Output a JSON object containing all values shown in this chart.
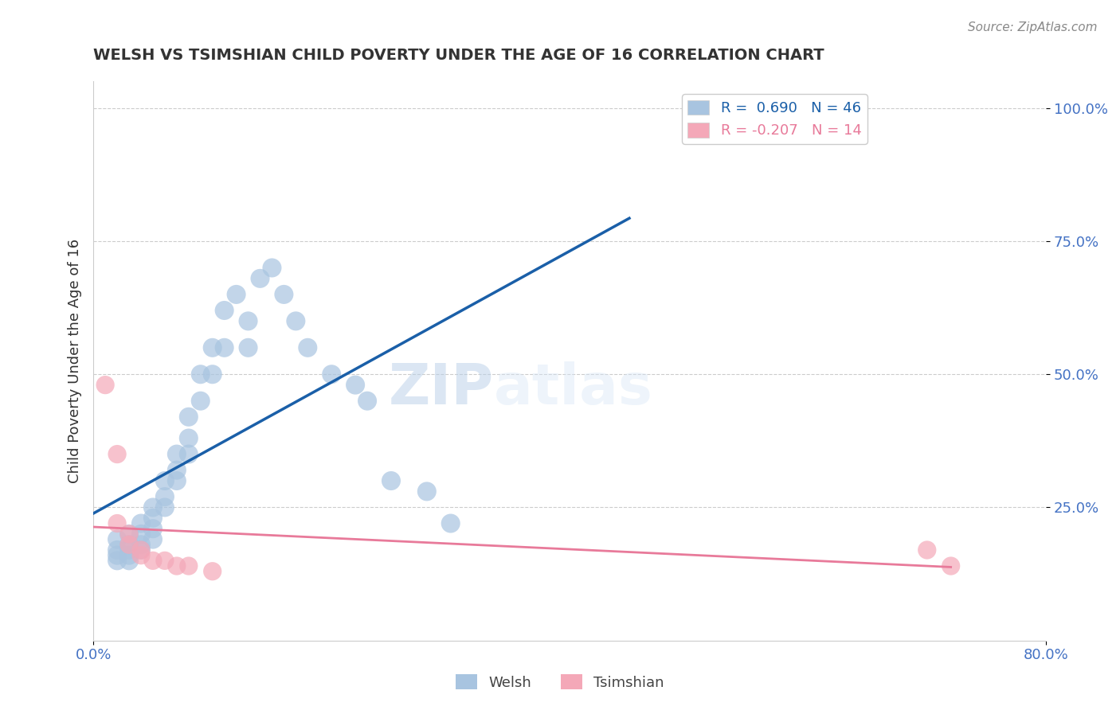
{
  "title": "WELSH VS TSIMSHIAN CHILD POVERTY UNDER THE AGE OF 16 CORRELATION CHART",
  "source": "Source: ZipAtlas.com",
  "ylabel": "Child Poverty Under the Age of 16",
  "welsh_R": 0.69,
  "welsh_N": 46,
  "tsimshian_R": -0.207,
  "tsimshian_N": 14,
  "welsh_color": "#a8c4e0",
  "tsimshian_color": "#f4a8b8",
  "welsh_line_color": "#1a5fa8",
  "tsimshian_line_color": "#e87a9a",
  "welsh_points": [
    [
      0.02,
      0.19
    ],
    [
      0.02,
      0.17
    ],
    [
      0.02,
      0.16
    ],
    [
      0.02,
      0.15
    ],
    [
      0.03,
      0.2
    ],
    [
      0.03,
      0.18
    ],
    [
      0.03,
      0.17
    ],
    [
      0.03,
      0.16
    ],
    [
      0.03,
      0.15
    ],
    [
      0.04,
      0.22
    ],
    [
      0.04,
      0.2
    ],
    [
      0.04,
      0.18
    ],
    [
      0.04,
      0.17
    ],
    [
      0.05,
      0.25
    ],
    [
      0.05,
      0.23
    ],
    [
      0.05,
      0.21
    ],
    [
      0.05,
      0.19
    ],
    [
      0.06,
      0.3
    ],
    [
      0.06,
      0.27
    ],
    [
      0.06,
      0.25
    ],
    [
      0.07,
      0.35
    ],
    [
      0.07,
      0.32
    ],
    [
      0.07,
      0.3
    ],
    [
      0.08,
      0.42
    ],
    [
      0.08,
      0.38
    ],
    [
      0.08,
      0.35
    ],
    [
      0.09,
      0.5
    ],
    [
      0.09,
      0.45
    ],
    [
      0.1,
      0.55
    ],
    [
      0.1,
      0.5
    ],
    [
      0.11,
      0.62
    ],
    [
      0.11,
      0.55
    ],
    [
      0.12,
      0.65
    ],
    [
      0.13,
      0.6
    ],
    [
      0.13,
      0.55
    ],
    [
      0.14,
      0.68
    ],
    [
      0.15,
      0.7
    ],
    [
      0.16,
      0.65
    ],
    [
      0.17,
      0.6
    ],
    [
      0.18,
      0.55
    ],
    [
      0.2,
      0.5
    ],
    [
      0.22,
      0.48
    ],
    [
      0.23,
      0.45
    ],
    [
      0.25,
      0.3
    ],
    [
      0.28,
      0.28
    ],
    [
      0.3,
      0.22
    ]
  ],
  "tsimshian_points": [
    [
      0.01,
      0.48
    ],
    [
      0.02,
      0.35
    ],
    [
      0.02,
      0.22
    ],
    [
      0.03,
      0.2
    ],
    [
      0.03,
      0.18
    ],
    [
      0.04,
      0.17
    ],
    [
      0.04,
      0.16
    ],
    [
      0.05,
      0.15
    ],
    [
      0.06,
      0.15
    ],
    [
      0.07,
      0.14
    ],
    [
      0.08,
      0.14
    ],
    [
      0.1,
      0.13
    ],
    [
      0.7,
      0.17
    ],
    [
      0.72,
      0.14
    ]
  ],
  "xmin": 0.0,
  "xmax": 0.8,
  "ymin": 0.0,
  "ymax": 1.05,
  "background_color": "#ffffff",
  "grid_color": "#cccccc",
  "title_color": "#333333",
  "tick_color": "#4472c4"
}
